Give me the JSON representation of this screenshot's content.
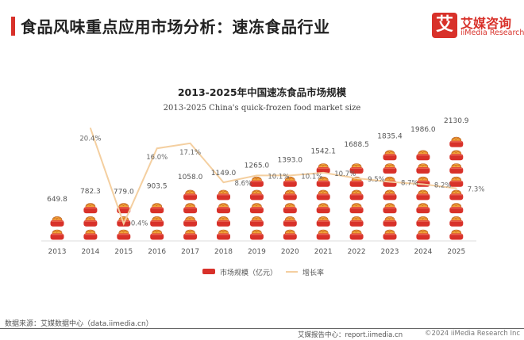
{
  "header": {
    "title": "食品风味重点应用市场分析：速冻食品行业"
  },
  "logo": {
    "mark": "艾",
    "name_cn": "艾媒咨询",
    "name_en": "iiMedia Research"
  },
  "colors": {
    "accent": "#d8312a",
    "bar_icon_red": "#d8312a",
    "bar_icon_orange": "#f2a33a",
    "growth_line": "#f4cfa0",
    "text": "#555555"
  },
  "chart_data": {
    "type": "bar",
    "title": "2013-2025年中国速冻食品市场规模",
    "subtitle": "2013-2025 China's quick-frozen food market size",
    "categories": [
      "2013",
      "2014",
      "2015",
      "2016",
      "2017",
      "2018",
      "2019",
      "2020",
      "2021",
      "2022",
      "2023",
      "2024",
      "2025"
    ],
    "bar_style": "pictogram stacked dumpling-bowl icons",
    "grid": false,
    "legend_position": "bottom",
    "series": [
      {
        "name": "市场规模（亿元）",
        "type": "bar",
        "values": [
          649.8,
          782.3,
          779.0,
          903.5,
          1058.0,
          1149.0,
          1265.0,
          1393.0,
          1542.1,
          1688.5,
          1835.4,
          1986.0,
          2130.9
        ],
        "labels": [
          "649.8",
          "782.3",
          "779.0",
          "903.5",
          "1058.0",
          "1149.0",
          "1265.0",
          "1393.0",
          "1542.1",
          "1688.5",
          "1835.4",
          "1986.0",
          "2130.9"
        ]
      },
      {
        "name": "增长率",
        "type": "line",
        "axis": "secondary",
        "values": [
          null,
          20.4,
          -0.4,
          16.0,
          17.1,
          8.6,
          10.1,
          10.1,
          10.7,
          9.5,
          8.7,
          8.2,
          7.3
        ],
        "labels": [
          null,
          "20.4%",
          "-0.4%",
          "16.0%",
          "17.1%",
          "8.6%",
          "10.1%",
          "10.1%",
          "10.7%",
          "9.5%",
          "8.7%",
          "8.2%",
          "7.3%"
        ]
      }
    ]
  },
  "footer": {
    "source": "数据来源：艾媒数据中心（data.iimedia.cn）",
    "report": "艾媒报告中心：report.iimedia.cn",
    "copyright": "©2024  iiMedia Research Inc"
  }
}
